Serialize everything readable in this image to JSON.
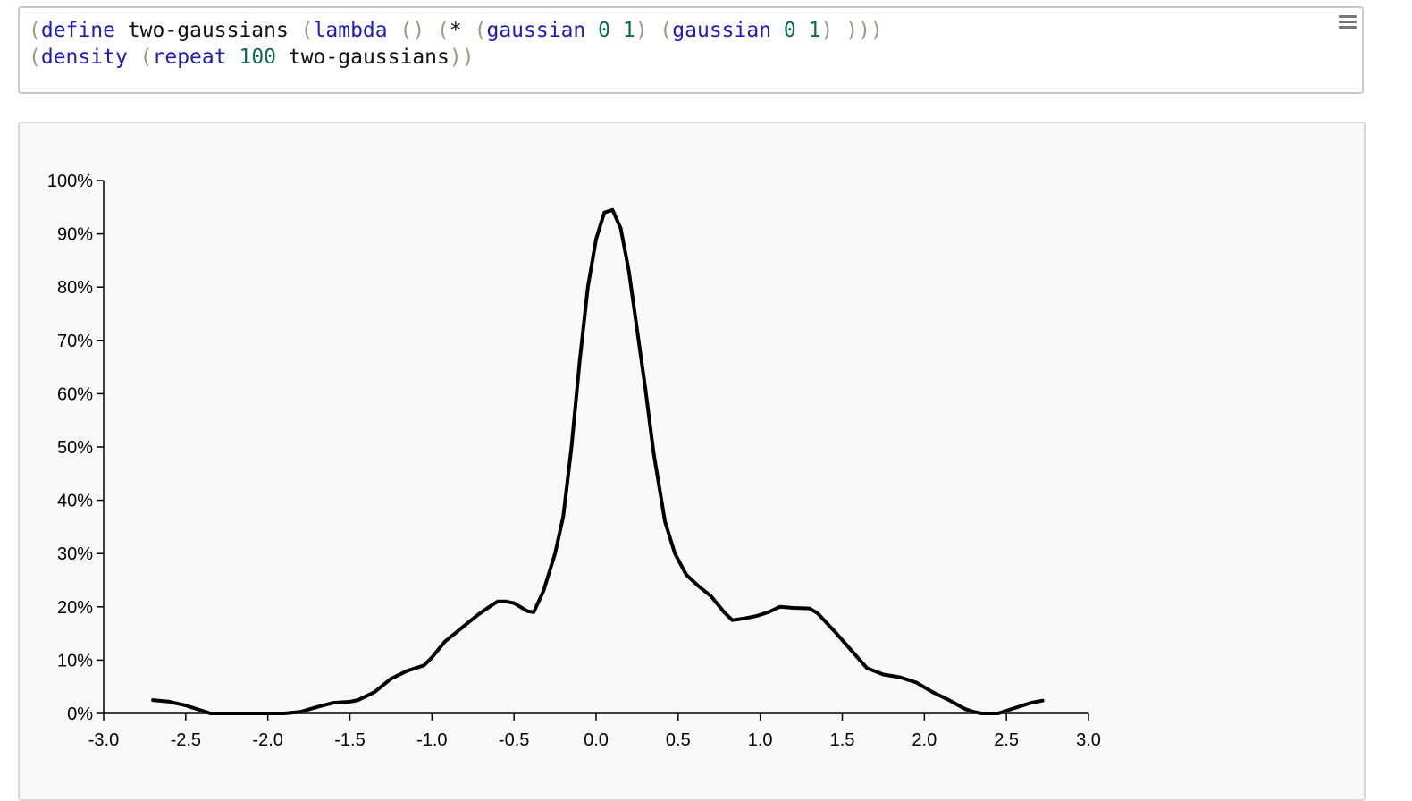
{
  "editor": {
    "lines": [
      [
        {
          "t": "(",
          "c": "paren"
        },
        {
          "t": "define",
          "c": "kw"
        },
        {
          "t": " two-gaussians ",
          "c": "sym"
        },
        {
          "t": "(",
          "c": "paren"
        },
        {
          "t": "lambda",
          "c": "kw"
        },
        {
          "t": " ",
          "c": "sym"
        },
        {
          "t": "()",
          "c": "paren"
        },
        {
          "t": " ",
          "c": "sym"
        },
        {
          "t": "(",
          "c": "paren"
        },
        {
          "t": "*",
          "c": "sym"
        },
        {
          "t": " ",
          "c": "sym"
        },
        {
          "t": "(",
          "c": "paren"
        },
        {
          "t": "gaussian",
          "c": "kw"
        },
        {
          "t": " ",
          "c": "sym"
        },
        {
          "t": "0",
          "c": "num"
        },
        {
          "t": " ",
          "c": "sym"
        },
        {
          "t": "1",
          "c": "num"
        },
        {
          "t": ")",
          "c": "paren"
        },
        {
          "t": " ",
          "c": "sym"
        },
        {
          "t": "(",
          "c": "paren"
        },
        {
          "t": "gaussian",
          "c": "kw"
        },
        {
          "t": " ",
          "c": "sym"
        },
        {
          "t": "0",
          "c": "num"
        },
        {
          "t": " ",
          "c": "sym"
        },
        {
          "t": "1",
          "c": "num"
        },
        {
          "t": ")",
          "c": "paren"
        },
        {
          "t": " ",
          "c": "sym"
        },
        {
          "t": ")))",
          "c": "paren"
        }
      ],
      [
        {
          "t": "(",
          "c": "paren"
        },
        {
          "t": "density",
          "c": "kw"
        },
        {
          "t": " ",
          "c": "sym"
        },
        {
          "t": "(",
          "c": "paren"
        },
        {
          "t": "repeat",
          "c": "kw"
        },
        {
          "t": " ",
          "c": "sym"
        },
        {
          "t": "100",
          "c": "num"
        },
        {
          "t": " two-gaussians",
          "c": "sym"
        },
        {
          "t": "))",
          "c": "paren"
        }
      ]
    ],
    "menu_icon": "hamburger-menu-icon"
  },
  "chart_data": {
    "type": "line",
    "title": "",
    "xlabel": "",
    "ylabel": "",
    "xlim": [
      -3.0,
      3.0
    ],
    "ylim": [
      0,
      1.0
    ],
    "x_ticks": [
      "-3.0",
      "-2.5",
      "-2.0",
      "-1.5",
      "-1.0",
      "-0.5",
      "0.0",
      "0.5",
      "1.0",
      "1.5",
      "2.0",
      "2.5",
      "3.0"
    ],
    "y_ticks": [
      "0%",
      "10%",
      "20%",
      "30%",
      "40%",
      "50%",
      "60%",
      "70%",
      "80%",
      "90%",
      "100%"
    ],
    "series": [
      {
        "color": "#000000",
        "points": [
          [
            -2.7,
            0.025
          ],
          [
            -2.6,
            0.022
          ],
          [
            -2.5,
            0.015
          ],
          [
            -2.4,
            0.005
          ],
          [
            -2.35,
            0.0
          ],
          [
            -2.2,
            0.0
          ],
          [
            -2.0,
            0.0
          ],
          [
            -1.9,
            0.0
          ],
          [
            -1.8,
            0.003
          ],
          [
            -1.7,
            0.012
          ],
          [
            -1.6,
            0.02
          ],
          [
            -1.5,
            0.022
          ],
          [
            -1.45,
            0.025
          ],
          [
            -1.35,
            0.04
          ],
          [
            -1.25,
            0.065
          ],
          [
            -1.15,
            0.08
          ],
          [
            -1.05,
            0.09
          ],
          [
            -1.0,
            0.105
          ],
          [
            -0.92,
            0.135
          ],
          [
            -0.82,
            0.16
          ],
          [
            -0.72,
            0.185
          ],
          [
            -0.65,
            0.2
          ],
          [
            -0.6,
            0.21
          ],
          [
            -0.55,
            0.21
          ],
          [
            -0.5,
            0.207
          ],
          [
            -0.42,
            0.192
          ],
          [
            -0.38,
            0.19
          ],
          [
            -0.32,
            0.23
          ],
          [
            -0.25,
            0.3
          ],
          [
            -0.2,
            0.37
          ],
          [
            -0.15,
            0.5
          ],
          [
            -0.1,
            0.66
          ],
          [
            -0.05,
            0.8
          ],
          [
            0.0,
            0.89
          ],
          [
            0.05,
            0.94
          ],
          [
            0.1,
            0.945
          ],
          [
            0.15,
            0.91
          ],
          [
            0.2,
            0.83
          ],
          [
            0.25,
            0.72
          ],
          [
            0.3,
            0.61
          ],
          [
            0.35,
            0.49
          ],
          [
            0.42,
            0.36
          ],
          [
            0.48,
            0.3
          ],
          [
            0.55,
            0.26
          ],
          [
            0.62,
            0.24
          ],
          [
            0.7,
            0.22
          ],
          [
            0.78,
            0.19
          ],
          [
            0.83,
            0.175
          ],
          [
            0.9,
            0.178
          ],
          [
            0.98,
            0.183
          ],
          [
            1.05,
            0.19
          ],
          [
            1.12,
            0.2
          ],
          [
            1.2,
            0.198
          ],
          [
            1.3,
            0.197
          ],
          [
            1.35,
            0.188
          ],
          [
            1.45,
            0.155
          ],
          [
            1.55,
            0.12
          ],
          [
            1.65,
            0.085
          ],
          [
            1.75,
            0.073
          ],
          [
            1.85,
            0.068
          ],
          [
            1.95,
            0.058
          ],
          [
            2.05,
            0.04
          ],
          [
            2.15,
            0.025
          ],
          [
            2.25,
            0.008
          ],
          [
            2.3,
            0.003
          ],
          [
            2.35,
            0.0
          ],
          [
            2.45,
            0.0
          ],
          [
            2.55,
            0.01
          ],
          [
            2.65,
            0.02
          ],
          [
            2.72,
            0.024
          ]
        ]
      }
    ],
    "grid": false,
    "legend": "none"
  }
}
